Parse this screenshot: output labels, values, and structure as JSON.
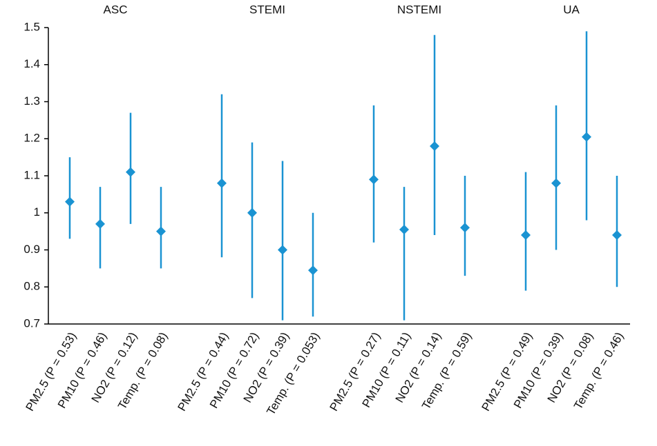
{
  "chart_data": {
    "type": "errorbar",
    "color": "#1a93d2",
    "ylim": [
      0.7,
      1.5
    ],
    "yticks": [
      0.7,
      0.8,
      0.9,
      1,
      1.1,
      1.2,
      1.3,
      1.4,
      1.5
    ],
    "groups": [
      {
        "name": "ASC",
        "categories": [
          "PM2.5 (P = 0.53)",
          "PM10 (P = 0.46)",
          "NO2 (P = 0.12)",
          "Temp. (P = 0.08)"
        ],
        "values": [
          1.03,
          0.97,
          1.11,
          0.95
        ],
        "lower": [
          0.93,
          0.85,
          0.97,
          0.85
        ],
        "upper": [
          1.15,
          1.07,
          1.27,
          1.07
        ]
      },
      {
        "name": "STEMI",
        "categories": [
          "PM2.5 (P = 0.44)",
          "PM10 (P = 0.72)",
          "NO2 (P = 0.39)",
          "Temp. (P = 0.053)"
        ],
        "values": [
          1.08,
          1.0,
          0.9,
          0.845
        ],
        "lower": [
          0.88,
          0.77,
          0.71,
          0.72
        ],
        "upper": [
          1.32,
          1.19,
          1.14,
          1.0
        ]
      },
      {
        "name": "NSTEMI",
        "categories": [
          "PM2.5 (P = 0.27)",
          "PM10 (P = 0.11)",
          "NO2 (P = 0.14)",
          "Temp. (P = 0.59)"
        ],
        "values": [
          1.09,
          0.955,
          1.18,
          0.96
        ],
        "lower": [
          0.92,
          0.71,
          0.94,
          0.83
        ],
        "upper": [
          1.29,
          1.07,
          1.48,
          1.1
        ]
      },
      {
        "name": "UA",
        "categories": [
          "PM2.5 (P = 0.49)",
          "PM10 (P = 0.39)",
          "NO2 (P = 0.08)",
          "Temp. (P = 0.46)"
        ],
        "values": [
          0.94,
          1.08,
          1.205,
          0.94
        ],
        "lower": [
          0.79,
          0.9,
          0.98,
          0.8
        ],
        "upper": [
          1.11,
          1.29,
          1.49,
          1.1
        ]
      }
    ]
  }
}
